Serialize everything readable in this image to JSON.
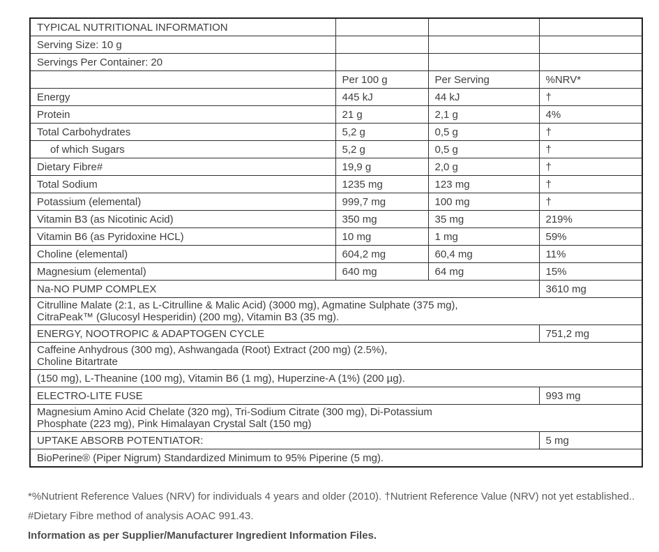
{
  "table": {
    "info_rows": [
      "TYPICAL NUTRITIONAL INFORMATION",
      "Serving Size: 10 g",
      "Servings Per Container: 20"
    ],
    "header": {
      "col1": "",
      "per_100g": "Per 100 g",
      "per_serving": "Per Serving",
      "nrv": "%NRV*"
    },
    "nutrients": [
      {
        "name": "Energy",
        "per_100g": "445 kJ",
        "per_serving": "44 kJ",
        "nrv": "†",
        "indent": false
      },
      {
        "name": "Protein",
        "per_100g": "21 g",
        "per_serving": "2,1 g",
        "nrv": "4%",
        "indent": false
      },
      {
        "name": "Total Carbohydrates",
        "per_100g": "5,2 g",
        "per_serving": "0,5 g",
        "nrv": "†",
        "indent": false
      },
      {
        "name": "of which Sugars",
        "per_100g": "5,2 g",
        "per_serving": "0,5 g",
        "nrv": "†",
        "indent": true
      },
      {
        "name": "Dietary Fibre#",
        "per_100g": "19,9 g",
        "per_serving": "2,0 g",
        "nrv": "†",
        "indent": false
      },
      {
        "name": "Total Sodium",
        "per_100g": "1235 mg",
        "per_serving": "123 mg",
        "nrv": "†",
        "indent": false
      },
      {
        "name": "Potassium (elemental)",
        "per_100g": "999,7 mg",
        "per_serving": "100 mg",
        "nrv": "†",
        "indent": false
      },
      {
        "name": "Vitamin B3 (as Nicotinic Acid)",
        "per_100g": "350 mg",
        "per_serving": "35 mg",
        "nrv": "219%",
        "indent": false
      },
      {
        "name": "Vitamin B6 (as Pyridoxine HCL)",
        "per_100g": "10 mg",
        "per_serving": "1 mg",
        "nrv": "59%",
        "indent": false
      },
      {
        "name": "Choline (elemental)",
        "per_100g": "604,2 mg",
        "per_serving": "60,4 mg",
        "nrv": "11%",
        "indent": false
      },
      {
        "name": "Magnesium (elemental)",
        "per_100g": "640 mg",
        "per_serving": "64 mg",
        "nrv": "15%",
        "indent": false
      }
    ],
    "sections": [
      {
        "title": "Na-NO PUMP COMPLEX",
        "amount": "3610 mg",
        "detail_rows": [
          [
            "Citrulline Malate (2:1, as L-Citrulline & Malic Acid) (3000 mg), Agmatine Sulphate (375 mg),",
            "CitraPeak™ (Glucosyl Hesperidin) (200 mg), Vitamin B3 (35 mg)."
          ]
        ]
      },
      {
        "title": "ENERGY, NOOTROPIC & ADAPTOGEN CYCLE",
        "amount": "751,2 mg",
        "detail_rows": [
          [
            "Caffeine Anhydrous (300 mg), Ashwangada (Root) Extract (200 mg) (2.5%),",
            "Choline Bitartrate"
          ],
          [
            "(150 mg), L-Theanine (100 mg), Vitamin B6 (1 mg), Huperzine-A (1%) (200 µg)."
          ]
        ]
      },
      {
        "title": "ELECTRO-LITE FUSE",
        "amount": "993 mg",
        "detail_rows": [
          [
            "Magnesium Amino Acid Chelate (320 mg), Tri-Sodium Citrate (300 mg), Di-Potassium",
            "Phosphate (223 mg), Pink Himalayan Crystal Salt (150 mg)"
          ]
        ]
      },
      {
        "title": "UPTAKE ABSORB POTENTIATOR:",
        "amount": "5 mg",
        "detail_rows": [
          [
            "BioPerine® (Piper Nigrum) Standardized Minimum to 95% Piperine (5 mg)."
          ]
        ]
      }
    ]
  },
  "footnotes": {
    "line1": "*%Nutrient Reference Values (NRV) for individuals 4 years and older (2010). †Nutrient Reference Value (NRV) not yet established..",
    "line2": "#Dietary Fibre method of analysis AOAC 991.43.",
    "line3": "Information as per Supplier/Manufacturer Ingredient Information Files."
  },
  "colors": {
    "table_text": "#3d3d3d",
    "border": "#2e2e2e",
    "footnote_text": "#5a5a5a",
    "footnote_bold": "#4d4d4d"
  }
}
